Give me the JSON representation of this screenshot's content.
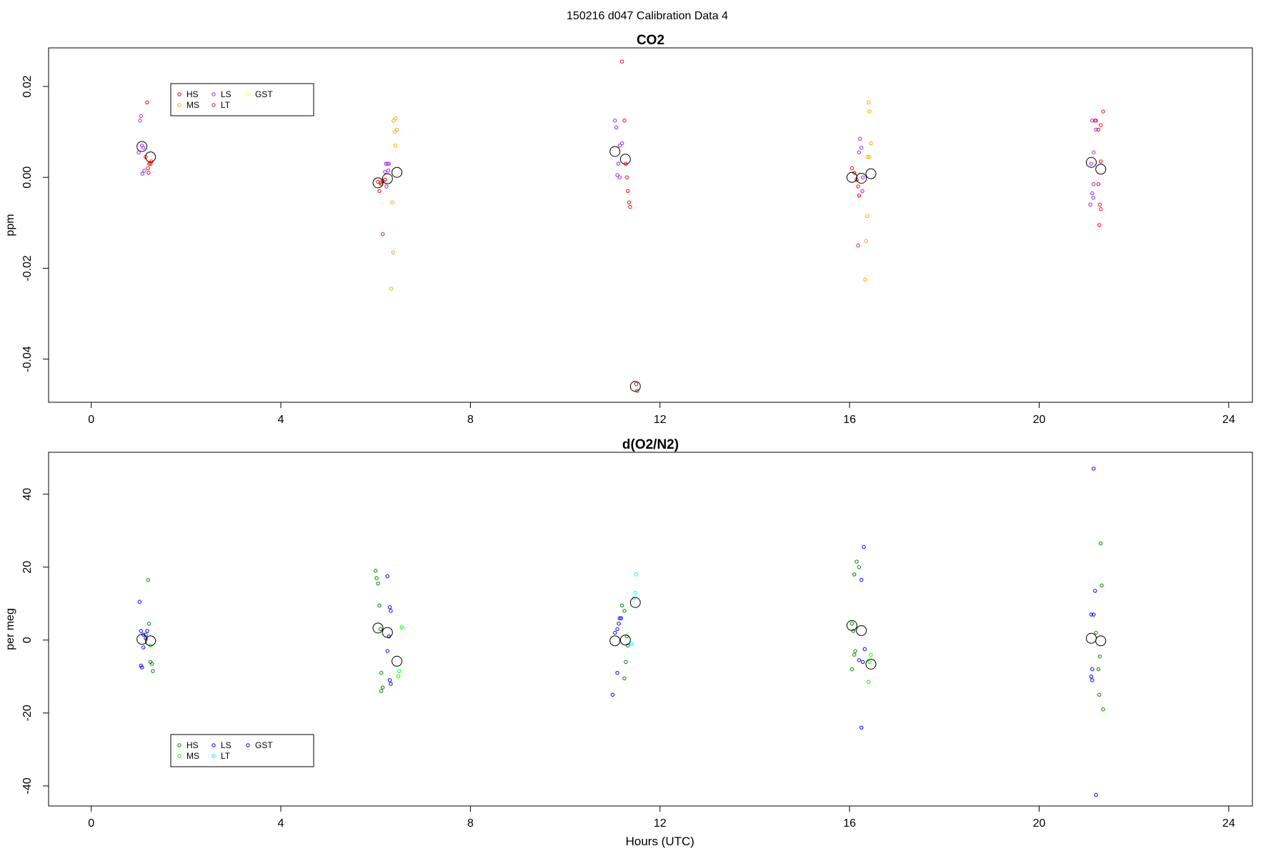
{
  "figure_title": "150216   d047   Calibration Data 4",
  "chart_data": [
    {
      "type": "scatter",
      "title": "CO2",
      "xlabel": "",
      "ylabel": "ppm",
      "xlim": [
        -0.9,
        24.5
      ],
      "ylim": [
        -0.0495,
        0.0285
      ],
      "xticks": [
        0,
        4,
        8,
        12,
        16,
        20,
        24
      ],
      "yticks": [
        -0.04,
        -0.02,
        0.0,
        0.02
      ],
      "ytick_labels": [
        "-0.04",
        "-0.02",
        "0.00",
        "0.02"
      ],
      "grid": false,
      "legend_position": "top-left",
      "legend": [
        {
          "name": "HS",
          "color": "#ff0000"
        },
        {
          "name": "MS",
          "color": "#ffa500"
        },
        {
          "name": "LS",
          "color": "#a020f0"
        },
        {
          "name": "LT",
          "color": "#b22222"
        },
        {
          "name": "GST",
          "color": "#ffff00"
        }
      ],
      "series": [
        {
          "name": "HS",
          "color": "#ff0000",
          "points": [
            [
              1.18,
              0.0165
            ],
            [
              1.22,
              0.003
            ],
            [
              1.2,
              0.002
            ],
            [
              1.21,
              0.001
            ],
            [
              1.25,
              0.003
            ],
            [
              1.27,
              0.0035
            ],
            [
              1.15,
              0.0045
            ],
            [
              6.05,
              -0.001
            ],
            [
              6.1,
              -0.0012
            ],
            [
              6.08,
              -0.003
            ],
            [
              6.12,
              -0.0015
            ],
            [
              6.15,
              -0.0008
            ],
            [
              6.2,
              -0.0005
            ],
            [
              11.2,
              0.0255
            ],
            [
              11.25,
              0.0125
            ],
            [
              11.28,
              0.003
            ],
            [
              11.3,
              0.0
            ],
            [
              11.32,
              -0.003
            ],
            [
              11.35,
              -0.0055
            ],
            [
              11.37,
              -0.0065
            ],
            [
              16.05,
              0.002
            ],
            [
              16.1,
              0.001
            ],
            [
              16.15,
              -0.0005
            ],
            [
              16.18,
              -0.002
            ],
            [
              16.2,
              -0.004
            ],
            [
              21.2,
              0.0125
            ],
            [
              21.25,
              0.0105
            ],
            [
              21.3,
              0.0115
            ],
            [
              21.35,
              0.0145
            ],
            [
              21.3,
              0.0035
            ],
            [
              21.25,
              -0.0015
            ],
            [
              21.28,
              -0.006
            ],
            [
              21.3,
              -0.007
            ],
            [
              21.27,
              -0.0105
            ]
          ]
        },
        {
          "name": "MS",
          "color": "#ffa500",
          "points": [
            [
              6.38,
              0.0125
            ],
            [
              6.42,
              0.013
            ],
            [
              6.45,
              0.0105
            ],
            [
              6.4,
              0.01
            ],
            [
              6.42,
              0.007
            ],
            [
              6.35,
              -0.0055
            ],
            [
              6.37,
              -0.0165
            ],
            [
              6.33,
              -0.0245
            ],
            [
              16.4,
              0.0165
            ],
            [
              16.42,
              0.0145
            ],
            [
              16.45,
              0.0075
            ],
            [
              16.38,
              0.0045
            ],
            [
              16.42,
              0.0045
            ],
            [
              16.37,
              -0.0085
            ],
            [
              16.35,
              -0.014
            ],
            [
              16.33,
              -0.0225
            ]
          ]
        },
        {
          "name": "LS",
          "color": "#a020f0",
          "points": [
            [
              1.05,
              0.0135
            ],
            [
              1.03,
              0.0125
            ],
            [
              1.07,
              0.007
            ],
            [
              1.1,
              0.0065
            ],
            [
              1.0,
              0.0055
            ],
            [
              1.12,
              0.0015
            ],
            [
              1.08,
              0.0008
            ],
            [
              6.22,
              0.003
            ],
            [
              6.25,
              0.003
            ],
            [
              6.28,
              0.003
            ],
            [
              6.27,
              0.0015
            ],
            [
              6.2,
              0.0012
            ],
            [
              6.23,
              -0.002
            ],
            [
              6.15,
              -0.0125
            ],
            [
              11.05,
              0.0125
            ],
            [
              11.08,
              0.011
            ],
            [
              11.15,
              0.007
            ],
            [
              11.2,
              0.0075
            ],
            [
              11.12,
              0.003
            ],
            [
              11.1,
              0.0005
            ],
            [
              11.15,
              0.0
            ],
            [
              16.22,
              0.0085
            ],
            [
              16.25,
              0.0065
            ],
            [
              16.2,
              0.0055
            ],
            [
              16.28,
              0.0
            ],
            [
              16.27,
              -0.003
            ],
            [
              16.18,
              -0.015
            ],
            [
              21.12,
              0.0125
            ],
            [
              21.18,
              0.0125
            ],
            [
              21.2,
              0.0105
            ],
            [
              21.15,
              0.0055
            ],
            [
              21.1,
              0.003
            ],
            [
              21.15,
              -0.0015
            ],
            [
              21.12,
              -0.0035
            ],
            [
              21.14,
              -0.0045
            ],
            [
              21.08,
              -0.006
            ]
          ]
        },
        {
          "name": "LT",
          "color": "#b22222",
          "points": [
            [
              11.5,
              -0.0455
            ],
            [
              11.52,
              -0.047
            ]
          ]
        }
      ],
      "means": [
        [
          1.07,
          0.0068
        ],
        [
          1.25,
          0.0045
        ],
        [
          6.05,
          -0.0012
        ],
        [
          6.25,
          -0.0003
        ],
        [
          6.45,
          0.0011
        ],
        [
          11.05,
          0.0057
        ],
        [
          11.27,
          0.004
        ],
        [
          11.48,
          -0.046
        ],
        [
          16.05,
          0.0
        ],
        [
          16.25,
          -0.0002
        ],
        [
          16.45,
          0.0008
        ],
        [
          21.1,
          0.0033
        ],
        [
          21.3,
          0.0018
        ]
      ]
    },
    {
      "type": "scatter",
      "title": "d(O2/N2)",
      "xlabel": "Hours (UTC)",
      "ylabel": "per meg",
      "xlim": [
        -0.9,
        24.5
      ],
      "ylim": [
        -45.5,
        51.5
      ],
      "xticks": [
        0,
        4,
        8,
        12,
        16,
        20,
        24
      ],
      "yticks": [
        -40,
        -20,
        0,
        20,
        40
      ],
      "ytick_labels": [
        "-40",
        "-20",
        "0",
        "20",
        "40"
      ],
      "grid": false,
      "legend_position": "bottom-left",
      "legend": [
        {
          "name": "HS",
          "color": "#008000"
        },
        {
          "name": "MS",
          "color": "#00ff00"
        },
        {
          "name": "LS",
          "color": "#0000ff"
        },
        {
          "name": "LT",
          "color": "#00ffff"
        },
        {
          "name": "GST",
          "color": "#0000cd"
        }
      ],
      "series": [
        {
          "name": "HS",
          "color": "#008000",
          "points": [
            [
              1.2,
              16.5
            ],
            [
              1.22,
              4.5
            ],
            [
              1.15,
              1.5
            ],
            [
              1.25,
              -6
            ],
            [
              1.28,
              -6.5
            ],
            [
              1.3,
              -8.5
            ],
            [
              6.0,
              19
            ],
            [
              6.02,
              17
            ],
            [
              6.05,
              15.5
            ],
            [
              6.08,
              9.5
            ],
            [
              6.1,
              3
            ],
            [
              6.12,
              -9
            ],
            [
              6.15,
              -13
            ],
            [
              6.12,
              -14
            ],
            [
              11.2,
              9.5
            ],
            [
              11.25,
              8
            ],
            [
              11.3,
              1
            ],
            [
              11.32,
              -1.5
            ],
            [
              11.28,
              -6
            ],
            [
              11.25,
              -10.5
            ],
            [
              16.15,
              21.5
            ],
            [
              16.1,
              18
            ],
            [
              16.2,
              20
            ],
            [
              16.05,
              4.5
            ],
            [
              16.08,
              2.5
            ],
            [
              16.12,
              -3
            ],
            [
              16.1,
              -4
            ],
            [
              16.05,
              -8
            ],
            [
              21.3,
              26.5
            ],
            [
              21.32,
              15
            ],
            [
              21.2,
              2
            ],
            [
              21.28,
              -4.5
            ],
            [
              21.25,
              -8
            ],
            [
              21.27,
              -15
            ],
            [
              21.35,
              -19
            ]
          ]
        },
        {
          "name": "MS",
          "color": "#00ff00",
          "points": [
            [
              1.25,
              -1.5
            ],
            [
              6.55,
              3.5
            ],
            [
              6.5,
              -8.5
            ],
            [
              6.48,
              -10
            ],
            [
              16.45,
              -4
            ],
            [
              16.42,
              -6
            ],
            [
              16.4,
              -11.5
            ]
          ]
        },
        {
          "name": "LS",
          "color": "#0000ff",
          "points": [
            [
              1.02,
              10.5
            ],
            [
              1.05,
              2.5
            ],
            [
              1.1,
              1.5
            ],
            [
              1.18,
              2.5
            ],
            [
              1.15,
              0.5
            ],
            [
              1.1,
              -2
            ],
            [
              1.05,
              -7
            ],
            [
              1.07,
              -7.5
            ],
            [
              6.25,
              17.5
            ],
            [
              6.3,
              9
            ],
            [
              6.32,
              8
            ],
            [
              6.28,
              1
            ],
            [
              6.25,
              -3
            ],
            [
              6.3,
              -11
            ],
            [
              6.32,
              -12
            ],
            [
              11.15,
              6
            ],
            [
              11.18,
              6
            ],
            [
              11.13,
              4.5
            ],
            [
              11.1,
              3
            ],
            [
              11.05,
              2
            ],
            [
              11.1,
              -9
            ],
            [
              11.0,
              -15
            ],
            [
              16.3,
              25.5
            ],
            [
              16.25,
              16.5
            ],
            [
              16.2,
              -5.5
            ],
            [
              16.28,
              -6
            ],
            [
              16.32,
              -2.5
            ],
            [
              16.25,
              -24
            ],
            [
              21.15,
              47
            ],
            [
              21.18,
              13.5
            ],
            [
              21.1,
              7
            ],
            [
              21.15,
              7
            ],
            [
              21.12,
              -8
            ],
            [
              21.1,
              -10
            ],
            [
              21.12,
              -11
            ],
            [
              21.2,
              -42.5
            ]
          ]
        },
        {
          "name": "LT",
          "color": "#00ffff",
          "points": [
            [
              11.5,
              18
            ],
            [
              11.48,
              13
            ],
            [
              11.45,
              11.5
            ],
            [
              11.4,
              -1
            ]
          ]
        }
      ],
      "means": [
        [
          1.07,
          0.2
        ],
        [
          1.25,
          -0.2
        ],
        [
          6.05,
          3.3
        ],
        [
          6.25,
          2.1
        ],
        [
          6.45,
          -5.8
        ],
        [
          11.05,
          -0.2
        ],
        [
          11.27,
          0.0
        ],
        [
          11.48,
          10.3
        ],
        [
          16.05,
          4.0
        ],
        [
          16.25,
          2.6
        ],
        [
          16.45,
          -6.6
        ],
        [
          21.1,
          0.5
        ],
        [
          21.3,
          -0.2
        ]
      ]
    }
  ]
}
